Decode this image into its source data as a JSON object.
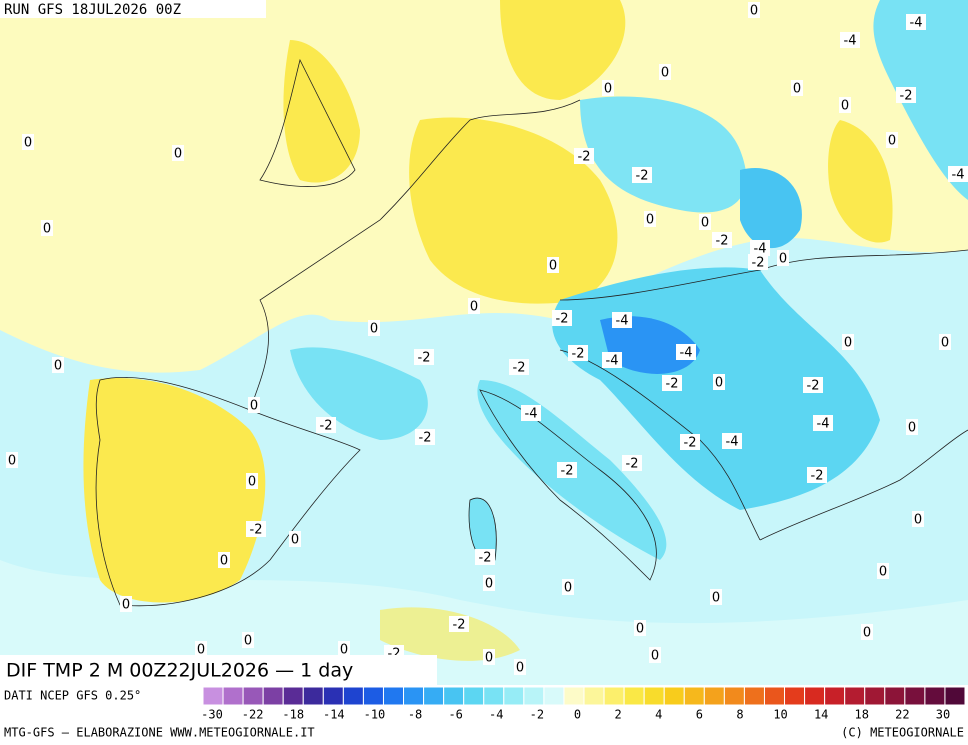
{
  "header": {
    "title": "RUN GFS 18JUL2026 00Z"
  },
  "map": {
    "title": "DIF TMP 2 M 00Z22JUL2026 — 1 day",
    "labels": [
      "0",
      "-4",
      "-4",
      "0",
      "0",
      "0",
      "0",
      "-2",
      "0",
      "0",
      "0",
      "-2",
      "-2",
      "-4",
      "0",
      "0",
      "0",
      "-2",
      "-4",
      "-2",
      "0",
      "0",
      "0",
      "-2",
      "-4",
      "0",
      "0",
      "0",
      "-2",
      "-2",
      "-4",
      "-4",
      "0",
      "-2",
      "-2",
      "0",
      "-2",
      "0",
      "-4",
      "-2",
      "-2",
      "-4",
      "0",
      "-2",
      "-4",
      "0",
      "-2",
      "-2",
      "-2",
      "0",
      "-2",
      "0",
      "0",
      "0",
      "-2",
      "0",
      "0",
      "0",
      "0",
      "0",
      "-2",
      "0",
      "0",
      "0",
      "-2",
      "0",
      "0",
      "0",
      "0",
      "0"
    ]
  },
  "footer": {
    "source": "DATI NCEP GFS 0.25°",
    "credit": "MTG-GFS — ELABORAZIONE WWW.METEOGIORNALE.IT",
    "copyright": "(C) METEOGIORNALE"
  },
  "scale": {
    "ticks": [
      -30,
      -22,
      -18,
      -14,
      -10,
      -8,
      -6,
      -4,
      -2,
      0,
      2,
      4,
      6,
      8,
      10,
      14,
      18,
      22,
      30
    ],
    "colors": [
      "#c890e0",
      "#b070cc",
      "#9858b8",
      "#7c40a4",
      "#5a2c96",
      "#3c2a9c",
      "#2a30b4",
      "#1e44d0",
      "#1c5ce4",
      "#2078f0",
      "#2a94f4",
      "#36acf4",
      "#48c4f2",
      "#5cd6f2",
      "#78e2f4",
      "#96ecf6",
      "#b8f4f8",
      "#d8fafa",
      "#fdfbc8",
      "#fcf69a",
      "#fcef6c",
      "#fae846",
      "#f8dc2c",
      "#f8cc1c",
      "#f6b81c",
      "#f4a21c",
      "#f28a1c",
      "#ee701c",
      "#ea561c",
      "#e43c1c",
      "#d82a20",
      "#c82028",
      "#b41c30",
      "#a01834",
      "#8c1438",
      "#78103c",
      "#640c3c",
      "#500838"
    ]
  }
}
